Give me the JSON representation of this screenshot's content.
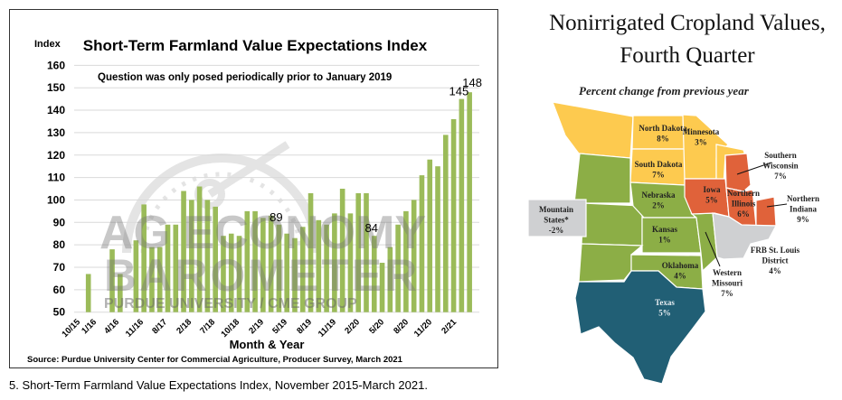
{
  "chart_data": {
    "type": "bar",
    "title": "Short-Term Farmland Value Expectations Index",
    "ylabel": "Index",
    "xlabel": "Month & Year",
    "note": "Question was only posed periodically prior to January 2019",
    "source": "Source: Purdue University Center for Commercial Agriculture, Producer Survey, March 2021",
    "ylim": [
      50,
      160
    ],
    "yticks": [
      "50",
      "60",
      "70",
      "80",
      "90",
      "100",
      "110",
      "120",
      "130",
      "140",
      "150",
      "160"
    ],
    "xticks": [
      "10/15",
      "1/16",
      "4/16",
      "11/16",
      "8/17",
      "2/18",
      "7/18",
      "10/18",
      "2/19",
      "5/19",
      "8/19",
      "11/19",
      "2/20",
      "5/20",
      "8/20",
      "11/20",
      "2/21"
    ],
    "values": [
      67,
      null,
      null,
      78,
      67,
      null,
      82,
      98,
      79,
      79,
      89,
      89,
      104,
      100,
      106,
      100,
      97,
      84,
      85,
      84,
      95,
      95,
      92,
      93,
      89,
      85,
      83,
      88,
      103,
      91,
      89,
      94,
      105,
      94,
      103,
      103,
      84,
      72,
      79,
      89,
      95,
      100,
      111,
      118,
      115,
      129,
      136,
      145,
      148
    ],
    "data_labels": [
      {
        "index": 24,
        "text": "89"
      },
      {
        "index": 36,
        "text": "84"
      },
      {
        "index": 47,
        "text": "145"
      },
      {
        "index": 48,
        "text": "148"
      }
    ],
    "bar_color": "#9bbb59",
    "grid": true,
    "watermark": [
      "AG ECONOMY",
      "BAROMETER",
      "PURDUE UNIVERSITY / CME GROUP"
    ]
  },
  "map": {
    "title_line1": "Nonirrigated Cropland Values,",
    "title_line2": "Fourth Quarter",
    "subtitle": "Percent change from previous year",
    "colors": {
      "yellow": "#fdca4f",
      "green": "#8cae46",
      "orange": "#e0623a",
      "teal": "#215f75",
      "gray": "#cfd0d2"
    },
    "regions": [
      {
        "name": "North Dakota",
        "value": "8%"
      },
      {
        "name": "Minnesota",
        "value": "3%"
      },
      {
        "name": "South Dakota",
        "value": "7%"
      },
      {
        "name": "Southern Wisconsin",
        "value": "7%"
      },
      {
        "name": "Iowa",
        "value": "5%"
      },
      {
        "name": "Northern Illinois",
        "value": "6%"
      },
      {
        "name": "Northern Indiana",
        "value": "9%"
      },
      {
        "name": "Nebraska",
        "value": "2%"
      },
      {
        "name": "Mountain States*",
        "value": "-2%"
      },
      {
        "name": "Kansas",
        "value": "1%"
      },
      {
        "name": "FRB St. Louis District",
        "value": "4%"
      },
      {
        "name": "Oklahoma",
        "value": "4%"
      },
      {
        "name": "Western Missouri",
        "value": "7%"
      },
      {
        "name": "Texas",
        "value": "5%"
      }
    ]
  },
  "caption": "5. Short-Term Farmland Value Expectations Index, November 2015-March 2021."
}
